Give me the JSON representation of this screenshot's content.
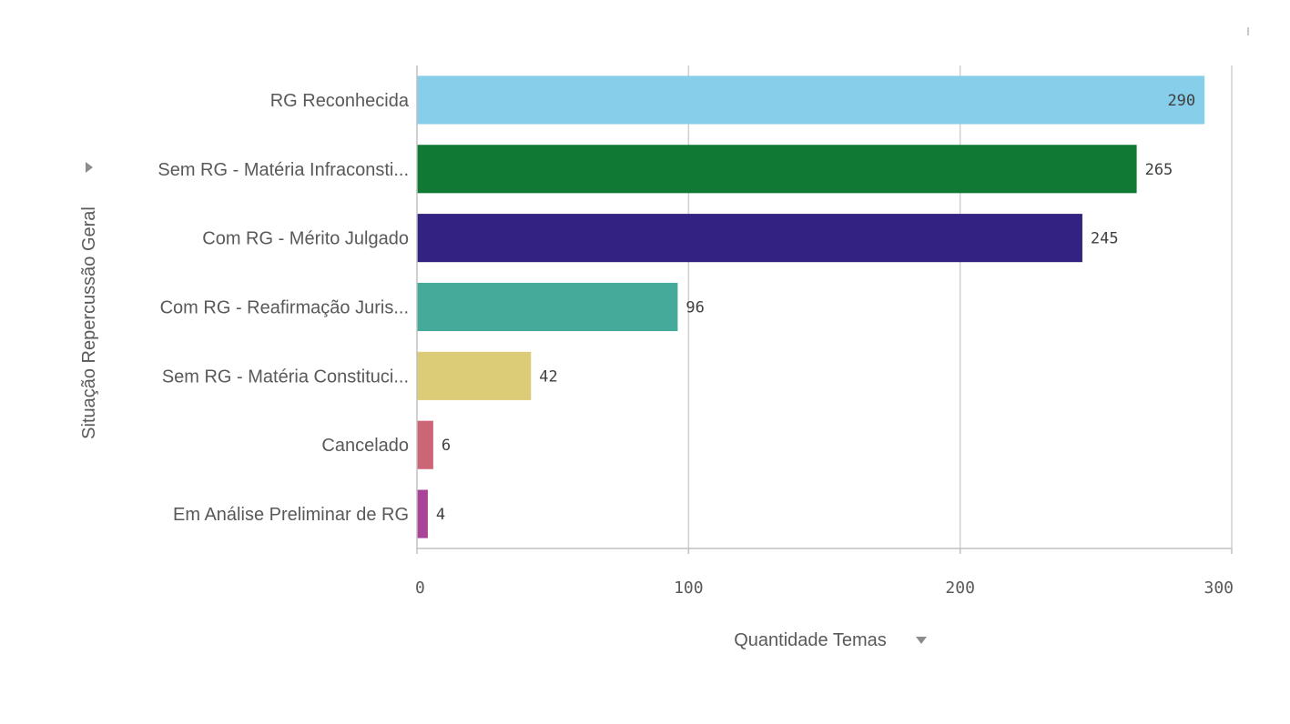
{
  "chart_data": {
    "type": "bar",
    "orientation": "horizontal",
    "categories": [
      "RG Reconhecida",
      "Sem RG - Matéria Infraconsti...",
      "Com RG - Mérito Julgado",
      "Com RG - Reafirmação Juris...",
      "Sem RG - Matéria Constituci...",
      "Cancelado",
      "Em Análise Preliminar de RG"
    ],
    "values": [
      290,
      265,
      245,
      96,
      42,
      6,
      4
    ],
    "value_labels": [
      "290",
      "265",
      "245",
      "96",
      "42",
      "6",
      "4"
    ],
    "colors": [
      "#87ceeb",
      "#107934",
      "#332282",
      "#44aa99",
      "#ddcc77",
      "#cc6677",
      "#aa4499"
    ],
    "xlabel": "Quantidade Temas",
    "ylabel": "Situação Repercussão Geral",
    "xlim": [
      0,
      300
    ],
    "xticks": [
      "0",
      "100",
      "200",
      "300"
    ],
    "grid": true,
    "legend": "none"
  },
  "controls": {
    "xlabel_sort_icon": "sort-down-icon",
    "ylabel_expand_icon": "expand-right-icon"
  }
}
